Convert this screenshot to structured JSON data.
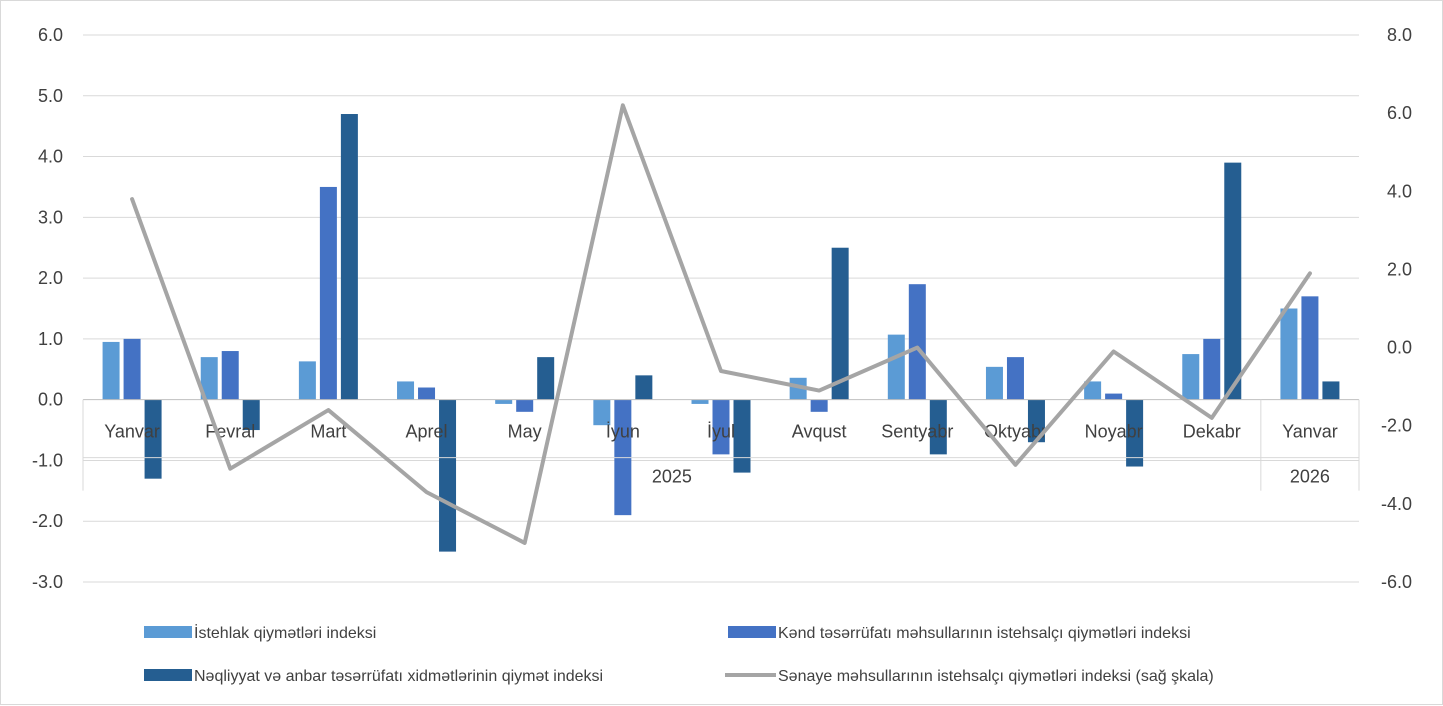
{
  "chart_data": {
    "type": "bar",
    "combo": "bar + line (secondary axis)",
    "title": "",
    "categories": [
      "Yanvar",
      "Fevral",
      "Mart",
      "Aprel",
      "May",
      "İyun",
      "İyul",
      "Avqust",
      "Sentyabr",
      "Oktyabr",
      "Noyabr",
      "Dekabr",
      "Yanvar"
    ],
    "category_groups": [
      {
        "label": "2025",
        "span": 12
      },
      {
        "label": "2026",
        "span": 1
      }
    ],
    "y_left": {
      "min": -3,
      "max": 6,
      "step": 1,
      "tick_labels": [
        "-3.0",
        "-2.0",
        "-1.0",
        "0.0",
        "1.0",
        "2.0",
        "3.0",
        "4.0",
        "5.0",
        "6.0"
      ]
    },
    "y_right": {
      "min": -6,
      "max": 8,
      "step": 2,
      "tick_labels": [
        "-6.0",
        "-4.0",
        "-2.0",
        "0.0",
        "2.0",
        "4.0",
        "6.0",
        "8.0"
      ]
    },
    "grid": true,
    "legend_position": "bottom",
    "series": [
      {
        "name": "İstehlak qiymətləri indeksi",
        "type": "bar",
        "axis": "left",
        "color": "#5B9BD5",
        "values": [
          0.95,
          0.7,
          0.63,
          0.3,
          -0.07,
          -0.42,
          -0.07,
          0.36,
          1.07,
          0.54,
          0.3,
          0.75,
          1.5
        ]
      },
      {
        "name": "Kənd təsərrüfatı məhsullarının istehsalçı qiymətləri indeksi",
        "type": "bar",
        "axis": "left",
        "color": "#4472C4",
        "values": [
          1.0,
          0.8,
          3.5,
          0.2,
          -0.2,
          -1.9,
          -0.9,
          -0.2,
          1.9,
          0.7,
          0.1,
          1.0,
          1.7
        ]
      },
      {
        "name": "Nəqliyyat və anbar təsərrüfatı xidmətlərinin qiymət indeksi",
        "type": "bar",
        "axis": "left",
        "color": "#255E91",
        "values": [
          -1.3,
          -0.5,
          4.7,
          -2.5,
          0.7,
          0.4,
          -1.2,
          2.5,
          -0.9,
          -0.7,
          -1.1,
          3.9,
          0.3
        ]
      },
      {
        "name": "Sənaye məhsullarının istehsalçı qiymətləri indeksi (sağ şkala)",
        "type": "line",
        "axis": "right",
        "color": "#A5A5A5",
        "values": [
          3.8,
          -3.1,
          -1.6,
          -3.7,
          -5.0,
          6.2,
          -0.6,
          -1.1,
          0.0,
          -3.0,
          -0.1,
          -1.8,
          1.9
        ]
      }
    ]
  }
}
